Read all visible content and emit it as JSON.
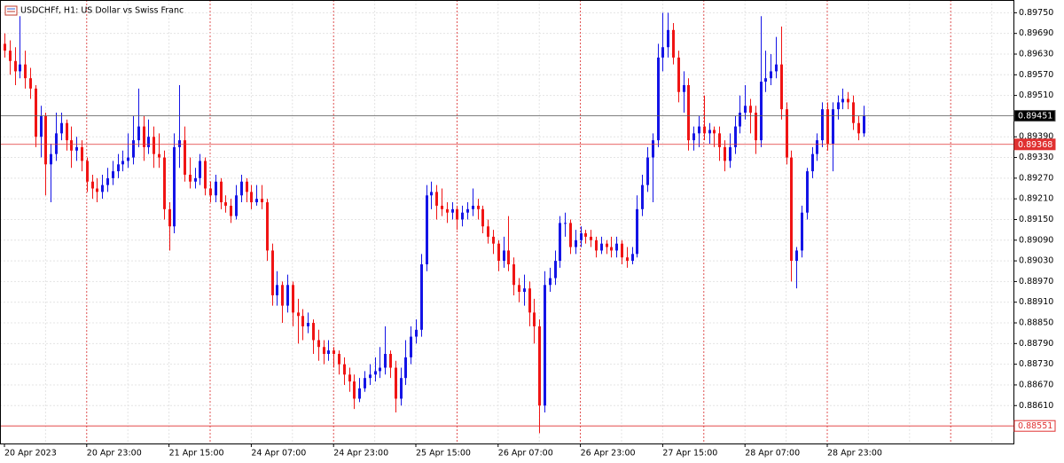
{
  "chart_data": {
    "type": "candlestick",
    "title": "USDCHFf, H1:  US Dollar vs Swiss Franc",
    "up_color": "#1414e6",
    "down_color": "#f01414",
    "grid": true,
    "ylim": [
      0.885,
      0.89787
    ],
    "yticks": [
      {
        "value": 0.8975,
        "label": "0.89750"
      },
      {
        "value": 0.8969,
        "label": "0.89690"
      },
      {
        "value": 0.8963,
        "label": "0.89630"
      },
      {
        "value": 0.8957,
        "label": "0.89570"
      },
      {
        "value": 0.8951,
        "label": "0.89510"
      },
      {
        "value": 0.8939,
        "label": "0.89390"
      },
      {
        "value": 0.8933,
        "label": "0.89330"
      },
      {
        "value": 0.8927,
        "label": "0.89270"
      },
      {
        "value": 0.8921,
        "label": "0.89210"
      },
      {
        "value": 0.8915,
        "label": "0.89150"
      },
      {
        "value": 0.8909,
        "label": "0.89090"
      },
      {
        "value": 0.8903,
        "label": "0.89030"
      },
      {
        "value": 0.8897,
        "label": "0.88970"
      },
      {
        "value": 0.8891,
        "label": "0.88910"
      },
      {
        "value": 0.8885,
        "label": "0.88850"
      },
      {
        "value": 0.8879,
        "label": "0.88790"
      },
      {
        "value": 0.8873,
        "label": "0.88730"
      },
      {
        "value": 0.8867,
        "label": "0.88670"
      },
      {
        "value": 0.8861,
        "label": "0.88610"
      }
    ],
    "bid": 0.89451,
    "levels": [
      0.89368,
      0.88551
    ],
    "categories": [
      "20 Apr 2023",
      null,
      null,
      null,
      null,
      null,
      null,
      null,
      null,
      null,
      null,
      null,
      null,
      null,
      null,
      null,
      "20 Apr 23:00",
      null,
      null,
      null,
      null,
      null,
      null,
      null,
      null,
      null,
      null,
      null,
      null,
      null,
      null,
      null,
      "21 Apr 15:00",
      null,
      null,
      null,
      null,
      null,
      null,
      null,
      null,
      null,
      null,
      null,
      null,
      null,
      null,
      null,
      "24 Apr 07:00",
      null,
      null,
      null,
      null,
      null,
      null,
      null,
      null,
      null,
      null,
      null,
      null,
      null,
      null,
      null,
      "24 Apr 23:00",
      null,
      null,
      null,
      null,
      null,
      null,
      null,
      null,
      null,
      null,
      null,
      null,
      null,
      null,
      null,
      "25 Apr 15:00",
      null,
      null,
      null,
      null,
      null,
      null,
      null,
      null,
      null,
      null,
      null,
      null,
      null,
      null,
      null,
      "26 Apr 07:00",
      null,
      null,
      null,
      null,
      null,
      null,
      null,
      null,
      null,
      null,
      null,
      null,
      null,
      null,
      null,
      "26 Apr 23:00",
      null,
      null,
      null,
      null,
      null,
      null,
      null,
      null,
      null,
      null,
      null,
      null,
      null,
      null,
      null,
      "27 Apr 15:00",
      null,
      null,
      null,
      null,
      null,
      null,
      null,
      null,
      null,
      null,
      null,
      null,
      null,
      null,
      null,
      "28 Apr 07:00",
      null,
      null,
      null,
      null,
      null,
      null,
      null,
      null,
      null,
      null,
      null,
      null,
      null,
      null,
      null,
      "28 Apr 23:00",
      null,
      null,
      null,
      null,
      null,
      null,
      null
    ],
    "candles": [
      [
        0.8966,
        0.8969,
        0.8962,
        0.8964
      ],
      [
        0.8964,
        0.8967,
        0.8957,
        0.8961
      ],
      [
        0.8961,
        0.8965,
        0.8954,
        0.8958
      ],
      [
        0.8958,
        0.8974,
        0.8956,
        0.896
      ],
      [
        0.896,
        0.8964,
        0.8953,
        0.8956
      ],
      [
        0.8956,
        0.8959,
        0.895,
        0.8953
      ],
      [
        0.8953,
        0.8954,
        0.8936,
        0.8939
      ],
      [
        0.8939,
        0.8948,
        0.8933,
        0.8945
      ],
      [
        0.8945,
        0.8946,
        0.8922,
        0.8931
      ],
      [
        0.8931,
        0.8937,
        0.892,
        0.8934
      ],
      [
        0.8934,
        0.8946,
        0.8932,
        0.894
      ],
      [
        0.894,
        0.8946,
        0.8938,
        0.8943
      ],
      [
        0.8943,
        0.8944,
        0.8935,
        0.8938
      ],
      [
        0.8938,
        0.8942,
        0.893,
        0.8935
      ],
      [
        0.8935,
        0.8939,
        0.8932,
        0.8936
      ],
      [
        0.8936,
        0.8938,
        0.8929,
        0.8932
      ],
      [
        0.8932,
        0.8933,
        0.8923,
        0.8926
      ],
      [
        0.8926,
        0.8928,
        0.8921,
        0.8924
      ],
      [
        0.8924,
        0.8927,
        0.892,
        0.8923
      ],
      [
        0.8923,
        0.8928,
        0.8921,
        0.8925
      ],
      [
        0.8925,
        0.893,
        0.8923,
        0.8927
      ],
      [
        0.8927,
        0.8932,
        0.8925,
        0.8929
      ],
      [
        0.8929,
        0.8934,
        0.8927,
        0.8931
      ],
      [
        0.8931,
        0.8935,
        0.8929,
        0.8932
      ],
      [
        0.8932,
        0.894,
        0.893,
        0.8933
      ],
      [
        0.8933,
        0.8945,
        0.8931,
        0.8938
      ],
      [
        0.8938,
        0.8953,
        0.8936,
        0.8942
      ],
      [
        0.8942,
        0.8945,
        0.8932,
        0.8936
      ],
      [
        0.8936,
        0.8944,
        0.8934,
        0.8939
      ],
      [
        0.8939,
        0.8942,
        0.893,
        0.8934
      ],
      [
        0.8934,
        0.894,
        0.893,
        0.8933
      ],
      [
        0.8933,
        0.8935,
        0.8915,
        0.8918
      ],
      [
        0.8918,
        0.892,
        0.8906,
        0.8913
      ],
      [
        0.8913,
        0.894,
        0.8911,
        0.8936
      ],
      [
        0.8936,
        0.8954,
        0.893,
        0.8938
      ],
      [
        0.8938,
        0.8942,
        0.8926,
        0.8928
      ],
      [
        0.8928,
        0.8933,
        0.8924,
        0.8926
      ],
      [
        0.8926,
        0.893,
        0.8924,
        0.8927
      ],
      [
        0.8927,
        0.8934,
        0.8925,
        0.8932
      ],
      [
        0.8932,
        0.8933,
        0.8922,
        0.8924
      ],
      [
        0.8924,
        0.8926,
        0.892,
        0.8922
      ],
      [
        0.8922,
        0.8928,
        0.892,
        0.8926
      ],
      [
        0.8926,
        0.8927,
        0.8918,
        0.892
      ],
      [
        0.892,
        0.8922,
        0.8917,
        0.8919
      ],
      [
        0.8919,
        0.8921,
        0.8914,
        0.8916
      ],
      [
        0.8916,
        0.8925,
        0.8915,
        0.8922
      ],
      [
        0.8922,
        0.8928,
        0.892,
        0.8926
      ],
      [
        0.8926,
        0.8927,
        0.892,
        0.8923
      ],
      [
        0.8923,
        0.8925,
        0.8918,
        0.892
      ],
      [
        0.892,
        0.8925,
        0.8919,
        0.8921
      ],
      [
        0.8921,
        0.8925,
        0.8918,
        0.892
      ],
      [
        0.892,
        0.8921,
        0.8903,
        0.8906
      ],
      [
        0.8906,
        0.8908,
        0.889,
        0.8893
      ],
      [
        0.8893,
        0.89,
        0.889,
        0.8896
      ],
      [
        0.8896,
        0.8897,
        0.8885,
        0.889
      ],
      [
        0.889,
        0.8899,
        0.8888,
        0.8896
      ],
      [
        0.8896,
        0.8897,
        0.8884,
        0.8888
      ],
      [
        0.8888,
        0.8892,
        0.8879,
        0.8887
      ],
      [
        0.8887,
        0.8889,
        0.888,
        0.8884
      ],
      [
        0.8884,
        0.8888,
        0.8882,
        0.8885
      ],
      [
        0.8885,
        0.8886,
        0.8876,
        0.888
      ],
      [
        0.888,
        0.8883,
        0.8874,
        0.8878
      ],
      [
        0.8878,
        0.888,
        0.8873,
        0.8876
      ],
      [
        0.8876,
        0.888,
        0.8874,
        0.8877
      ],
      [
        0.8877,
        0.8878,
        0.8872,
        0.8876
      ],
      [
        0.8876,
        0.8877,
        0.887,
        0.8873
      ],
      [
        0.8873,
        0.8875,
        0.8867,
        0.887
      ],
      [
        0.887,
        0.8872,
        0.8865,
        0.8868
      ],
      [
        0.8868,
        0.887,
        0.886,
        0.8863
      ],
      [
        0.8863,
        0.8869,
        0.8862,
        0.8866
      ],
      [
        0.8866,
        0.8871,
        0.8865,
        0.8869
      ],
      [
        0.8869,
        0.8873,
        0.8867,
        0.887
      ],
      [
        0.887,
        0.8875,
        0.8868,
        0.8871
      ],
      [
        0.8871,
        0.8878,
        0.8869,
        0.8872
      ],
      [
        0.8872,
        0.8884,
        0.887,
        0.8876
      ],
      [
        0.8876,
        0.8877,
        0.8869,
        0.8872
      ],
      [
        0.8872,
        0.8874,
        0.8859,
        0.8863
      ],
      [
        0.8863,
        0.8872,
        0.8861,
        0.8869
      ],
      [
        0.8869,
        0.888,
        0.8867,
        0.8875
      ],
      [
        0.8875,
        0.8884,
        0.8873,
        0.8881
      ],
      [
        0.8881,
        0.8886,
        0.8879,
        0.8883
      ],
      [
        0.8883,
        0.8905,
        0.8881,
        0.8902
      ],
      [
        0.8902,
        0.8925,
        0.89,
        0.8922
      ],
      [
        0.8922,
        0.8926,
        0.8918,
        0.8923
      ],
      [
        0.8923,
        0.8925,
        0.8915,
        0.8919
      ],
      [
        0.8919,
        0.8924,
        0.8916,
        0.8918
      ],
      [
        0.8918,
        0.892,
        0.8914,
        0.8917
      ],
      [
        0.8917,
        0.892,
        0.8915,
        0.8918
      ],
      [
        0.8918,
        0.8919,
        0.8912,
        0.8915
      ],
      [
        0.8915,
        0.8919,
        0.8913,
        0.8917
      ],
      [
        0.8917,
        0.892,
        0.8915,
        0.8918
      ],
      [
        0.8918,
        0.8924,
        0.8916,
        0.8919
      ],
      [
        0.8919,
        0.8921,
        0.8915,
        0.8918
      ],
      [
        0.8918,
        0.8919,
        0.8911,
        0.8913
      ],
      [
        0.8913,
        0.8915,
        0.8908,
        0.891
      ],
      [
        0.891,
        0.8912,
        0.8905,
        0.8908
      ],
      [
        0.8908,
        0.8909,
        0.89,
        0.8903
      ],
      [
        0.8903,
        0.891,
        0.8901,
        0.8906
      ],
      [
        0.8906,
        0.8916,
        0.89,
        0.8902
      ],
      [
        0.8902,
        0.8904,
        0.8893,
        0.8896
      ],
      [
        0.8896,
        0.8898,
        0.8891,
        0.8894
      ],
      [
        0.8894,
        0.8899,
        0.889,
        0.8895
      ],
      [
        0.8895,
        0.8897,
        0.8884,
        0.8888
      ],
      [
        0.8888,
        0.8892,
        0.8879,
        0.8884
      ],
      [
        0.8884,
        0.8886,
        0.8853,
        0.8861
      ],
      [
        0.8861,
        0.89,
        0.8859,
        0.8896
      ],
      [
        0.8896,
        0.8901,
        0.8894,
        0.8898
      ],
      [
        0.8898,
        0.8906,
        0.8896,
        0.8903
      ],
      [
        0.8903,
        0.8916,
        0.8901,
        0.8914
      ],
      [
        0.8914,
        0.8917,
        0.891,
        0.8914
      ],
      [
        0.8914,
        0.8915,
        0.8905,
        0.8907
      ],
      [
        0.8907,
        0.8912,
        0.8905,
        0.8909
      ],
      [
        0.8909,
        0.8913,
        0.8907,
        0.8911
      ],
      [
        0.8911,
        0.8912,
        0.8908,
        0.891
      ],
      [
        0.891,
        0.8912,
        0.8907,
        0.8909
      ],
      [
        0.8909,
        0.891,
        0.8904,
        0.8906
      ],
      [
        0.8906,
        0.891,
        0.8905,
        0.8908
      ],
      [
        0.8908,
        0.8909,
        0.8905,
        0.8907
      ],
      [
        0.8907,
        0.891,
        0.8904,
        0.8906
      ],
      [
        0.8906,
        0.891,
        0.8904,
        0.8908
      ],
      [
        0.8908,
        0.8909,
        0.8902,
        0.8904
      ],
      [
        0.8904,
        0.8907,
        0.8901,
        0.8903
      ],
      [
        0.8903,
        0.8907,
        0.8902,
        0.8905
      ],
      [
        0.8905,
        0.8922,
        0.8904,
        0.8918
      ],
      [
        0.8918,
        0.8928,
        0.8916,
        0.8925
      ],
      [
        0.8925,
        0.8936,
        0.8923,
        0.8933
      ],
      [
        0.8933,
        0.894,
        0.892,
        0.8938
      ],
      [
        0.8938,
        0.8966,
        0.8936,
        0.8962
      ],
      [
        0.8962,
        0.8975,
        0.8958,
        0.8965
      ],
      [
        0.8965,
        0.8975,
        0.8962,
        0.897
      ],
      [
        0.897,
        0.8972,
        0.896,
        0.8962
      ],
      [
        0.8962,
        0.8964,
        0.8949,
        0.8952
      ],
      [
        0.8952,
        0.8958,
        0.8946,
        0.8954
      ],
      [
        0.8954,
        0.8956,
        0.8935,
        0.8938
      ],
      [
        0.8938,
        0.8942,
        0.8935,
        0.894
      ],
      [
        0.894,
        0.8945,
        0.8936,
        0.8942
      ],
      [
        0.8942,
        0.8951,
        0.8938,
        0.894
      ],
      [
        0.894,
        0.8943,
        0.8937,
        0.8941
      ],
      [
        0.8941,
        0.8942,
        0.8936,
        0.894
      ],
      [
        0.894,
        0.8942,
        0.8932,
        0.8936
      ],
      [
        0.8936,
        0.8938,
        0.8929,
        0.8932
      ],
      [
        0.8932,
        0.894,
        0.893,
        0.8936
      ],
      [
        0.8936,
        0.8945,
        0.8934,
        0.8942
      ],
      [
        0.8942,
        0.8951,
        0.894,
        0.8946
      ],
      [
        0.8946,
        0.8954,
        0.8944,
        0.8948
      ],
      [
        0.8948,
        0.895,
        0.894,
        0.8946
      ],
      [
        0.8946,
        0.8948,
        0.8934,
        0.8938
      ],
      [
        0.8938,
        0.8974,
        0.8936,
        0.8955
      ],
      [
        0.8955,
        0.8964,
        0.8952,
        0.8956
      ],
      [
        0.8956,
        0.8963,
        0.8954,
        0.8958
      ],
      [
        0.8958,
        0.8968,
        0.8956,
        0.896
      ],
      [
        0.896,
        0.8971,
        0.8944,
        0.8947
      ],
      [
        0.8947,
        0.8949,
        0.8931,
        0.8933
      ],
      [
        0.8933,
        0.8935,
        0.8897,
        0.8903
      ],
      [
        0.8903,
        0.8907,
        0.8895,
        0.8906
      ],
      [
        0.8906,
        0.8919,
        0.8904,
        0.8917
      ],
      [
        0.8917,
        0.893,
        0.8915,
        0.8929
      ],
      [
        0.8929,
        0.8936,
        0.8927,
        0.8934
      ],
      [
        0.8934,
        0.894,
        0.8932,
        0.8938
      ],
      [
        0.8938,
        0.8949,
        0.8936,
        0.8947
      ],
      [
        0.8947,
        0.8949,
        0.8935,
        0.8937
      ],
      [
        0.8937,
        0.8949,
        0.8929,
        0.8947
      ],
      [
        0.8947,
        0.8951,
        0.8944,
        0.8949
      ],
      [
        0.8949,
        0.8953,
        0.8947,
        0.895
      ],
      [
        0.895,
        0.8952,
        0.8947,
        0.8949
      ],
      [
        0.8949,
        0.8951,
        0.8941,
        0.8943
      ],
      [
        0.8943,
        0.8945,
        0.8938,
        0.894
      ],
      [
        0.894,
        0.8948,
        0.8939,
        0.89451
      ]
    ]
  }
}
